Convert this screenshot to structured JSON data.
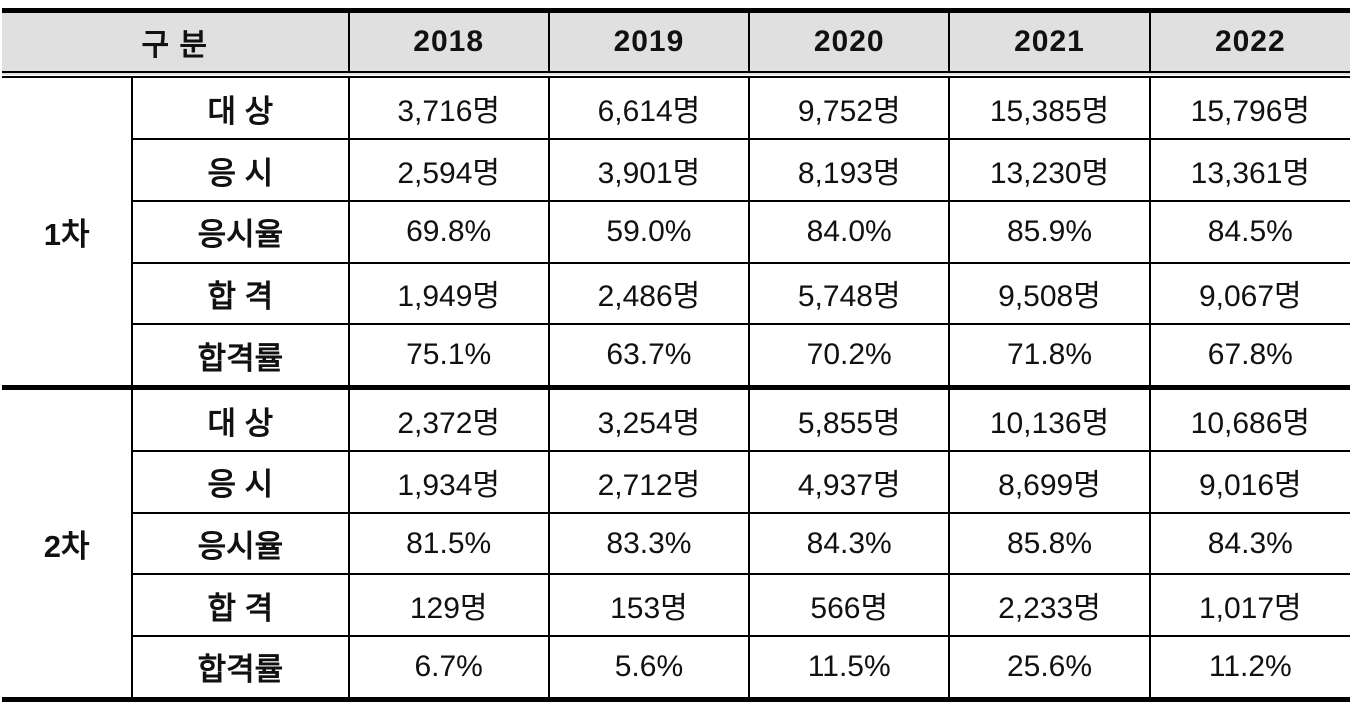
{
  "table": {
    "header": {
      "group_label": "구 분",
      "years": [
        "2018",
        "2019",
        "2020",
        "2021",
        "2022"
      ]
    },
    "sections": [
      {
        "group": "1차",
        "rows": [
          {
            "label": "대 상",
            "values": [
              "3,716명",
              "6,614명",
              "9,752명",
              "15,385명",
              "15,796명"
            ]
          },
          {
            "label": "응 시",
            "values": [
              "2,594명",
              "3,901명",
              "8,193명",
              "13,230명",
              "13,361명"
            ]
          },
          {
            "label": "응시율",
            "values": [
              "69.8%",
              "59.0%",
              "84.0%",
              "85.9%",
              "84.5%"
            ]
          },
          {
            "label": "합 격",
            "values": [
              "1,949명",
              "2,486명",
              "5,748명",
              "9,508명",
              "9,067명"
            ]
          },
          {
            "label": "합격률",
            "values": [
              "75.1%",
              "63.7%",
              "70.2%",
              "71.8%",
              "67.8%"
            ]
          }
        ]
      },
      {
        "group": "2차",
        "rows": [
          {
            "label": "대 상",
            "values": [
              "2,372명",
              "3,254명",
              "5,855명",
              "10,136명",
              "10,686명"
            ]
          },
          {
            "label": "응 시",
            "values": [
              "1,934명",
              "2,712명",
              "4,937명",
              "8,699명",
              "9,016명"
            ]
          },
          {
            "label": "응시율",
            "values": [
              "81.5%",
              "83.3%",
              "84.3%",
              "85.8%",
              "84.3%"
            ]
          },
          {
            "label": "합 격",
            "values": [
              "129명",
              "153명",
              "566명",
              "2,233명",
              "1,017명"
            ]
          },
          {
            "label": "합격률",
            "values": [
              "6.7%",
              "5.6%",
              "11.5%",
              "25.6%",
              "11.2%"
            ]
          }
        ]
      }
    ],
    "colors": {
      "header_bg": "#e0e0e0",
      "border": "#000000",
      "text": "#111111"
    }
  },
  "chart_data": {
    "type": "table",
    "title": "",
    "columns": [
      "구 분",
      "구 분",
      "2018",
      "2019",
      "2020",
      "2021",
      "2022"
    ],
    "rows": [
      [
        "1차",
        "대 상",
        "3,716명",
        "6,614명",
        "9,752명",
        "15,385명",
        "15,796명"
      ],
      [
        "1차",
        "응 시",
        "2,594명",
        "3,901명",
        "8,193명",
        "13,230명",
        "13,361명"
      ],
      [
        "1차",
        "응시율",
        "69.8%",
        "59.0%",
        "84.0%",
        "85.9%",
        "84.5%"
      ],
      [
        "1차",
        "합 격",
        "1,949명",
        "2,486명",
        "5,748명",
        "9,508명",
        "9,067명"
      ],
      [
        "1차",
        "합격률",
        "75.1%",
        "63.7%",
        "70.2%",
        "71.8%",
        "67.8%"
      ],
      [
        "2차",
        "대 상",
        "2,372명",
        "3,254명",
        "5,855명",
        "10,136명",
        "10,686명"
      ],
      [
        "2차",
        "응 시",
        "1,934명",
        "2,712명",
        "4,937명",
        "8,699명",
        "9,016명"
      ],
      [
        "2차",
        "응시율",
        "81.5%",
        "83.3%",
        "84.3%",
        "85.8%",
        "84.3%"
      ],
      [
        "2차",
        "합 격",
        "129명",
        "153명",
        "566명",
        "2,233명",
        "1,017명"
      ],
      [
        "2차",
        "합격률",
        "6.7%",
        "5.6%",
        "11.5%",
        "25.6%",
        "11.2%"
      ]
    ]
  }
}
